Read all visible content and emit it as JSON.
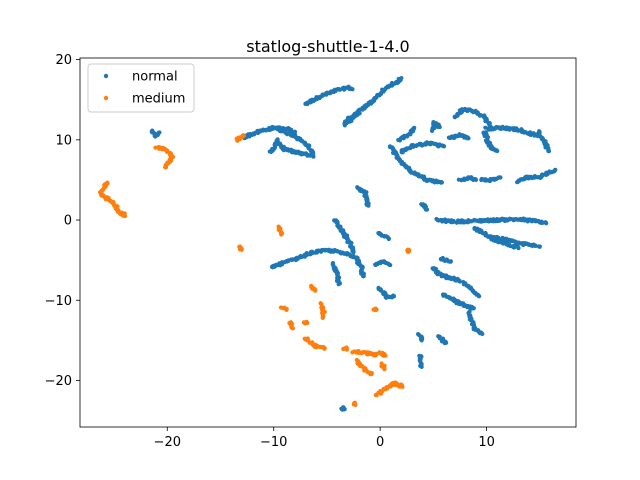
{
  "chart_data": {
    "type": "scatter",
    "title": "statlog-shuttle-1-4.0",
    "xlabel": "",
    "ylabel": "",
    "xlim": [
      -28.2,
      18.4
    ],
    "ylim": [
      -25.8,
      20.2
    ],
    "xticks": [
      -20,
      -10,
      0,
      10
    ],
    "yticks": [
      -20,
      -10,
      0,
      10,
      20
    ],
    "tick_labels_x": [
      "−20",
      "−10",
      "0",
      "10"
    ],
    "tick_labels_y": [
      "−20",
      "−10",
      "0",
      "10",
      "20"
    ],
    "grid": false,
    "legend_position": "upper-left",
    "series": [
      {
        "name": "normal",
        "color": "#1f77b4",
        "segments": [
          [
            [
              -21.5,
              11.1
            ],
            [
              -21.1,
              10.4
            ],
            [
              -20.8,
              10.9
            ]
          ],
          [
            [
              -7.0,
              14.5
            ],
            [
              -5.5,
              15.5
            ],
            [
              -4.0,
              16.2
            ],
            [
              -3.0,
              16.5
            ],
            [
              -2.6,
              16.3
            ]
          ],
          [
            [
              -3.3,
              12.1
            ],
            [
              -2.8,
              12.8
            ],
            [
              -2.2,
              13.2
            ]
          ],
          [
            [
              -3.3,
              11.8
            ],
            [
              -2.0,
              13.5
            ],
            [
              -1.0,
              14.5
            ],
            [
              -0.2,
              15.5
            ],
            [
              0.7,
              16.6
            ],
            [
              1.6,
              17.2
            ],
            [
              2.0,
              17.7
            ]
          ],
          [
            [
              -12.8,
              10.3
            ],
            [
              -11.5,
              11.0
            ],
            [
              -10.0,
              11.5
            ],
            [
              -8.5,
              11.3
            ],
            [
              -8.0,
              11.0
            ]
          ],
          [
            [
              -9.5,
              11.2
            ],
            [
              -8.0,
              10.5
            ],
            [
              -6.8,
              9.3
            ],
            [
              -6.3,
              8.2
            ]
          ],
          [
            [
              -9.8,
              10.0
            ],
            [
              -9.0,
              8.8
            ],
            [
              -7.5,
              8.3
            ],
            [
              -6.3,
              8.0
            ]
          ],
          [
            [
              -10.3,
              8.4
            ],
            [
              -9.8,
              9.6
            ]
          ],
          [
            [
              1.0,
              9.3
            ],
            [
              1.4,
              8.2
            ],
            [
              2.2,
              7.0
            ],
            [
              3.0,
              6.0
            ],
            [
              4.5,
              5.0
            ],
            [
              5.8,
              4.7
            ]
          ],
          [
            [
              1.8,
              10.0
            ],
            [
              2.8,
              10.8
            ],
            [
              3.2,
              11.5
            ]
          ],
          [
            [
              2.0,
              8.5
            ],
            [
              3.0,
              9.2
            ],
            [
              4.5,
              9.6
            ],
            [
              6.0,
              9.2
            ]
          ],
          [
            [
              6.5,
              10.2
            ],
            [
              7.5,
              10.6
            ],
            [
              8.3,
              10.2
            ]
          ],
          [
            [
              7.0,
              12.8
            ],
            [
              7.8,
              13.8
            ],
            [
              8.8,
              13.6
            ],
            [
              9.8,
              12.8
            ],
            [
              10.3,
              11.8
            ]
          ],
          [
            [
              4.9,
              11.2
            ],
            [
              5.1,
              12.1
            ],
            [
              5.6,
              11.6
            ]
          ],
          [
            [
              9.8,
              11.0
            ],
            [
              10.3,
              9.2
            ],
            [
              11.0,
              8.6
            ]
          ],
          [
            [
              10.0,
              11.4
            ],
            [
              11.5,
              11.5
            ],
            [
              13.0,
              11.3
            ],
            [
              14.0,
              10.8
            ],
            [
              15.0,
              10.5
            ]
          ],
          [
            [
              14.8,
              11.0
            ],
            [
              15.5,
              9.7
            ],
            [
              15.8,
              8.6
            ]
          ],
          [
            [
              7.5,
              5.0
            ],
            [
              8.3,
              5.3
            ],
            [
              9.0,
              5.0
            ]
          ],
          [
            [
              9.5,
              5.0
            ],
            [
              10.5,
              5.0
            ],
            [
              11.3,
              5.3
            ]
          ],
          [
            [
              12.8,
              4.8
            ],
            [
              13.8,
              5.3
            ],
            [
              15.0,
              5.4
            ],
            [
              16.0,
              6.0
            ],
            [
              16.4,
              6.2
            ]
          ],
          [
            [
              -2.1,
              4.0
            ],
            [
              -1.4,
              3.5
            ],
            [
              -1.3,
              2.5
            ],
            [
              -1.1,
              1.8
            ]
          ],
          [
            [
              3.9,
              2.0
            ],
            [
              4.4,
              1.3
            ]
          ],
          [
            [
              5.3,
              0.0
            ],
            [
              7.0,
              -0.2
            ],
            [
              9.0,
              -0.1
            ],
            [
              11.0,
              0.0
            ],
            [
              13.0,
              0.1
            ],
            [
              15.0,
              -0.2
            ],
            [
              15.6,
              -0.4
            ]
          ],
          [
            [
              8.8,
              -1.0
            ],
            [
              10.2,
              -2.0
            ],
            [
              12.0,
              -2.5
            ],
            [
              13.5,
              -3.0
            ],
            [
              15.0,
              -3.3
            ]
          ],
          [
            [
              10.5,
              -2.3
            ],
            [
              11.5,
              -2.8
            ],
            [
              12.5,
              -3.3
            ],
            [
              13.0,
              -3.5
            ]
          ],
          [
            [
              -10.2,
              -5.9
            ],
            [
              -9.0,
              -5.3
            ],
            [
              -7.8,
              -4.8
            ],
            [
              -6.3,
              -4.0
            ],
            [
              -5.0,
              -3.8
            ],
            [
              -4.0,
              -3.9
            ]
          ],
          [
            [
              -3.8,
              -4.1
            ],
            [
              -2.8,
              -4.3
            ],
            [
              -2.2,
              -4.8
            ],
            [
              -1.8,
              -5.8
            ],
            [
              -1.6,
              -7.0
            ]
          ],
          [
            [
              -4.3,
              0.0
            ],
            [
              -3.5,
              -1.5
            ],
            [
              -2.8,
              -3.0
            ],
            [
              -2.5,
              -4.0
            ]
          ],
          [
            [
              -4.4,
              -5.5
            ],
            [
              -4.0,
              -6.8
            ],
            [
              -3.9,
              -8.0
            ]
          ],
          [
            [
              -0.6,
              -5.5
            ],
            [
              0.3,
              -5.2
            ],
            [
              0.9,
              -5.6
            ]
          ],
          [
            [
              -0.2,
              -1.6
            ],
            [
              0.4,
              -2.0
            ],
            [
              0.8,
              -2.3
            ]
          ],
          [
            [
              -0.1,
              -8.4
            ],
            [
              0.3,
              -9.0
            ],
            [
              0.5,
              -9.6
            ],
            [
              1.3,
              -9.5
            ]
          ],
          [
            [
              5.7,
              -4.8
            ],
            [
              6.6,
              -5.2
            ]
          ],
          [
            [
              5.0,
              -6.0
            ],
            [
              5.5,
              -6.8
            ],
            [
              6.5,
              -7.2
            ],
            [
              7.3,
              -7.5
            ],
            [
              8.0,
              -8.0
            ],
            [
              8.7,
              -8.8
            ],
            [
              9.3,
              -9.5
            ]
          ],
          [
            [
              6.0,
              -9.3
            ],
            [
              7.3,
              -10.3
            ],
            [
              8.2,
              -10.8
            ],
            [
              8.8,
              -11.0
            ]
          ],
          [
            [
              8.3,
              -11.5
            ],
            [
              8.6,
              -12.6
            ],
            [
              8.8,
              -13.5
            ],
            [
              9.3,
              -14.0
            ],
            [
              9.6,
              -14.2
            ]
          ],
          [
            [
              5.5,
              -14.5
            ],
            [
              6.2,
              -15.3
            ]
          ],
          [
            [
              3.7,
              -14.2
            ],
            [
              3.9,
              -15.0
            ]
          ],
          [
            [
              3.8,
              -16.8
            ],
            [
              3.9,
              -18.3
            ]
          ],
          [
            [
              -3.5,
              -23.5
            ]
          ]
        ]
      },
      {
        "name": "medium",
        "color": "#ff7f0e",
        "segments": [
          [
            [
              -21.0,
              9.0
            ],
            [
              -20.2,
              8.8
            ],
            [
              -19.5,
              8.0
            ],
            [
              -20.0,
              7.0
            ],
            [
              -20.2,
              6.6
            ]
          ],
          [
            [
              -13.5,
              10.0
            ],
            [
              -12.8,
              10.5
            ]
          ],
          [
            [
              -25.7,
              4.7
            ],
            [
              -26.3,
              3.3
            ],
            [
              -25.5,
              2.5
            ],
            [
              -24.9,
              2.0
            ],
            [
              -24.6,
              1.2
            ],
            [
              -24.1,
              0.7
            ],
            [
              -24.0,
              0.5
            ]
          ],
          [
            [
              -9.5,
              -0.8
            ],
            [
              -9.3,
              -1.8
            ]
          ],
          [
            [
              -13.2,
              -3.4
            ],
            [
              -13.0,
              -3.7
            ]
          ],
          [
            [
              -9.2,
              -10.8
            ],
            [
              -8.8,
              -11.2
            ]
          ],
          [
            [
              -8.5,
              -12.8
            ],
            [
              -8.2,
              -13.5
            ]
          ],
          [
            [
              -6.5,
              -8.3
            ],
            [
              -6.1,
              -8.8
            ]
          ],
          [
            [
              -5.5,
              -10.5
            ],
            [
              -5.3,
              -11.4
            ],
            [
              -5.4,
              -12.2
            ]
          ],
          [
            [
              -7.0,
              -14.7
            ],
            [
              -6.0,
              -15.8
            ],
            [
              -5.2,
              -16.0
            ]
          ],
          [
            [
              -7.0,
              -12.8
            ]
          ],
          [
            [
              -2.5,
              -16.4
            ],
            [
              -1.2,
              -16.6
            ],
            [
              -0.5,
              -16.8
            ],
            [
              0.0,
              -16.6
            ],
            [
              0.5,
              -16.9
            ]
          ],
          [
            [
              -2.2,
              -17.5
            ],
            [
              -1.5,
              -18.6
            ],
            [
              -0.8,
              -19.2
            ]
          ],
          [
            [
              0.2,
              -18.0
            ],
            [
              0.4,
              -18.6
            ]
          ],
          [
            [
              -0.3,
              -21.8
            ],
            [
              0.5,
              -21.0
            ],
            [
              1.0,
              -20.5
            ],
            [
              1.5,
              -20.4
            ],
            [
              2.1,
              -20.8
            ]
          ],
          [
            [
              -2.3,
              -22.9
            ]
          ],
          [
            [
              -3.3,
              -16.0
            ]
          ],
          [
            [
              -0.5,
              -11.2
            ]
          ],
          [
            [
              2.7,
              -3.8
            ]
          ]
        ]
      }
    ]
  }
}
